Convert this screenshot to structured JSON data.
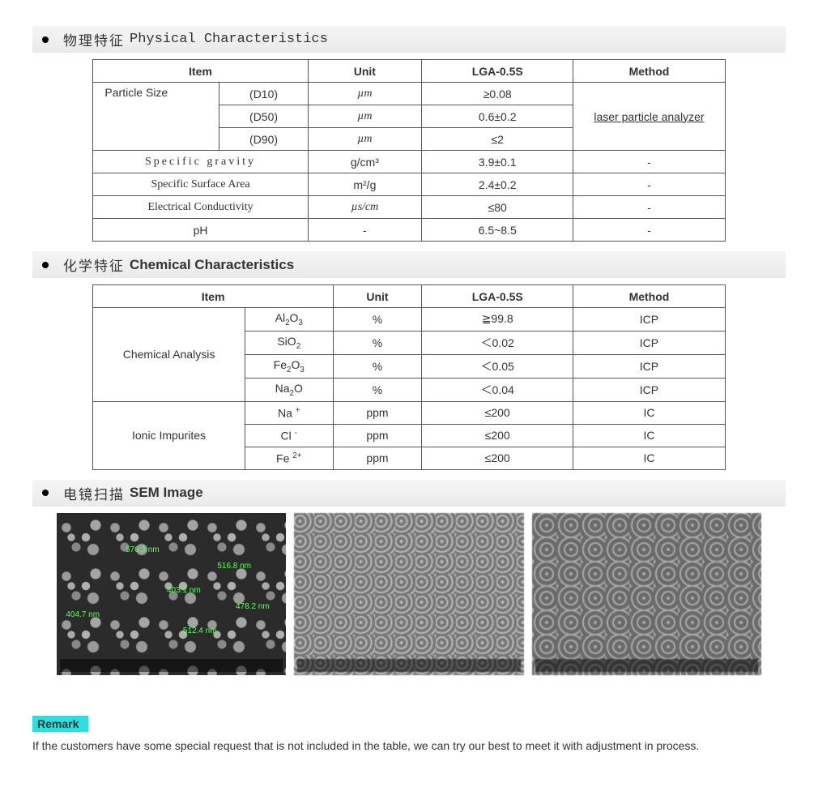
{
  "sections": {
    "physical": {
      "cn": "物理特征",
      "en": "Physical Characteristics"
    },
    "chemical": {
      "cn": "化学特征",
      "en": "Chemical Characteristics"
    },
    "sem": {
      "cn": "电镜扫描",
      "en": "SEM Image"
    }
  },
  "physical_table": {
    "headers": {
      "item": "Item",
      "unit": "Unit",
      "product": "LGA-0.5S",
      "method": "Method"
    },
    "particle_size_label": "Particle Size",
    "rows": [
      {
        "sub": "(D10)",
        "unit_html": "µm",
        "value": "≥0.08"
      },
      {
        "sub": "(D50)",
        "unit_html": "µm",
        "value": "0.6±0.2"
      },
      {
        "sub": "(D90)",
        "unit_html": "µm",
        "value": "≤2"
      }
    ],
    "method_particle": "laser particle analyzer",
    "others": [
      {
        "item": "Specific gravity",
        "item_class": "serif",
        "unit_html": "g/cm³",
        "value": "3.9±0.1",
        "method": "-"
      },
      {
        "item": "Specific Surface Area",
        "item_class": "",
        "unit_html": "m²/g",
        "value": "2.4±0.2",
        "method": "-"
      },
      {
        "item": "Electrical Conductivity",
        "item_class": "",
        "unit_html": "µs/cm",
        "value": "≤80",
        "method": "-"
      },
      {
        "item": "pH",
        "item_class": "",
        "unit_html": "-",
        "value": "6.5~8.5",
        "method": "-"
      }
    ],
    "col_widths": [
      "34%",
      "18%",
      "24%",
      "24%"
    ]
  },
  "chemical_table": {
    "headers": {
      "item": "Item",
      "unit": "Unit",
      "product": "LGA-0.5S",
      "method": "Method"
    },
    "group1_label": "Chemical Analysis",
    "group1_rows": [
      {
        "species_html": "Al<sub>2</sub>O<sub>3</sub>",
        "unit": "%",
        "value": "≧99.8",
        "method": "ICP"
      },
      {
        "species_html": "SiO<sub>2</sub>",
        "unit": "%",
        "value": "＜0.02",
        "method": "ICP"
      },
      {
        "species_html": "Fe<sub>2</sub>O<sub>3</sub>",
        "unit": "%",
        "value": "＜0.05",
        "method": "ICP"
      },
      {
        "species_html": "Na<sub>2</sub>O",
        "unit": "%",
        "value": "＜0.04",
        "method": "ICP"
      }
    ],
    "group2_label": "Ionic Impurites",
    "group2_rows": [
      {
        "species_html": "Na <sup>+</sup>",
        "unit": "ppm",
        "value": "≤200",
        "method": "IC"
      },
      {
        "species_html": "Cl <sup>-</sup>",
        "unit": "ppm",
        "value": "≤200",
        "method": "IC"
      },
      {
        "species_html": "Fe <sup>2+</sup>",
        "unit": "ppm",
        "value": "≤200",
        "method": "IC"
      }
    ],
    "col_widths": [
      "22%",
      "16%",
      "14%",
      "24%",
      "24%"
    ]
  },
  "sem": {
    "annotations_img1": [
      "404.7 nm",
      "576.3 nm",
      "403.1 nm",
      "516.8 nm",
      "512.4 nm",
      "478.2 nm"
    ]
  },
  "remark": {
    "title": "Remark",
    "text": "If the customers have some special request that is not included in the table, we can try our best to meet it with adjustment in process."
  },
  "colors": {
    "header_bg": "#eeeeee",
    "border": "#555555",
    "remark_bg": "#2de0e0"
  }
}
